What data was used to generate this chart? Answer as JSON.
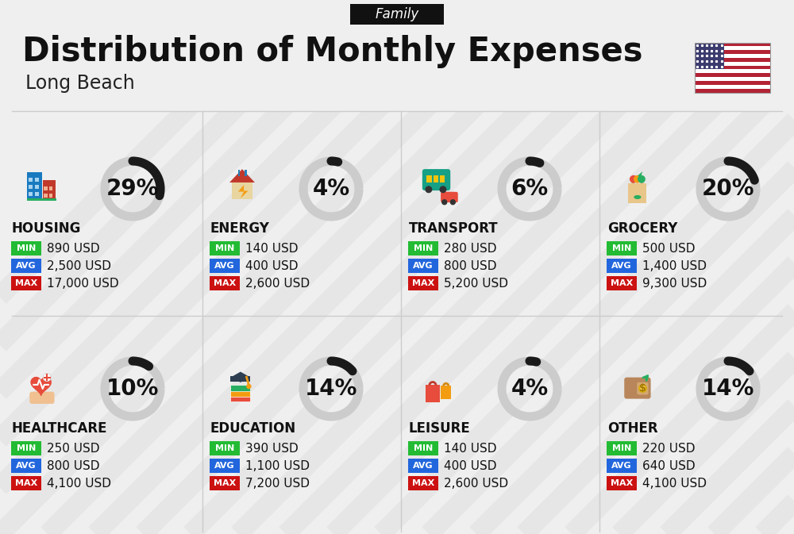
{
  "title": "Distribution of Monthly Expenses",
  "subtitle": "Long Beach",
  "family_label": "Family",
  "background_color": "#efefef",
  "categories": [
    {
      "name": "HOUSING",
      "percent": 29,
      "min": "890 USD",
      "avg": "2,500 USD",
      "max": "17,000 USD",
      "row": 0,
      "col": 0
    },
    {
      "name": "ENERGY",
      "percent": 4,
      "min": "140 USD",
      "avg": "400 USD",
      "max": "2,600 USD",
      "row": 0,
      "col": 1
    },
    {
      "name": "TRANSPORT",
      "percent": 6,
      "min": "280 USD",
      "avg": "800 USD",
      "max": "5,200 USD",
      "row": 0,
      "col": 2
    },
    {
      "name": "GROCERY",
      "percent": 20,
      "min": "500 USD",
      "avg": "1,400 USD",
      "max": "9,300 USD",
      "row": 0,
      "col": 3
    },
    {
      "name": "HEALTHCARE",
      "percent": 10,
      "min": "250 USD",
      "avg": "800 USD",
      "max": "4,100 USD",
      "row": 1,
      "col": 0
    },
    {
      "name": "EDUCATION",
      "percent": 14,
      "min": "390 USD",
      "avg": "1,100 USD",
      "max": "7,200 USD",
      "row": 1,
      "col": 1
    },
    {
      "name": "LEISURE",
      "percent": 4,
      "min": "140 USD",
      "avg": "400 USD",
      "max": "2,600 USD",
      "row": 1,
      "col": 2
    },
    {
      "name": "OTHER",
      "percent": 14,
      "min": "220 USD",
      "avg": "640 USD",
      "max": "4,100 USD",
      "row": 1,
      "col": 3
    }
  ],
  "min_color": "#22bb33",
  "avg_color": "#2266dd",
  "max_color": "#cc1111",
  "label_color": "#ffffff",
  "title_fontsize": 30,
  "subtitle_fontsize": 17,
  "category_fontsize": 12,
  "value_fontsize": 11,
  "percent_fontsize": 20,
  "family_bg": "#111111",
  "family_text": "#ffffff",
  "donut_dark": "#1a1a1a",
  "donut_light": "#cccccc",
  "stripe_color": "#e0e0e0",
  "divider_color": "#cccccc"
}
